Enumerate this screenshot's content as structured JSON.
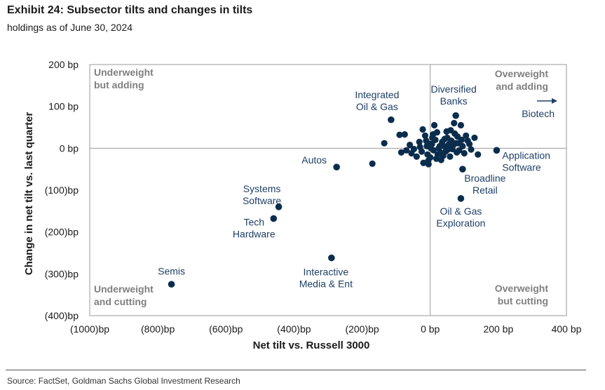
{
  "header": {
    "title": "Exhibit 24: Subsector tilts and changes in tilts",
    "subtitle": "holdings as of June 30, 2024"
  },
  "footer": {
    "source": "Source: FactSet, Goldman Sachs Global Investment Research"
  },
  "colors": {
    "marker": "#0b2d4d",
    "label": "#1f3f66",
    "quadrant_text": "#7f7f7f",
    "axis": "#999999"
  },
  "chart_data": {
    "type": "scatter",
    "title": "Exhibit 24: Subsector tilts and changes in tilts",
    "subtitle": "holdings as of June 30, 2024",
    "xlabel": "Net tilt vs. Russell 3000",
    "ylabel": "Change in net tilt vs. last quarter",
    "xlim": [
      -1000,
      400
    ],
    "ylim": [
      -400,
      200
    ],
    "x_ticks": [
      -1000,
      -800,
      -600,
      -400,
      -200,
      0,
      200,
      400
    ],
    "x_tick_labels": [
      "(1000)bp",
      "(800)bp",
      "(600)bp",
      "(400)bp",
      "(200)bp",
      "0 bp",
      "200 bp",
      "400 bp"
    ],
    "y_ticks": [
      200,
      100,
      0,
      -100,
      -200,
      -300,
      -400
    ],
    "y_tick_labels": [
      "200 bp",
      "100 bp",
      "0 bp",
      "(100)bp",
      "(200)bp",
      "(300)bp",
      "(400)bp"
    ],
    "grid": false,
    "quadrant_labels": [
      {
        "position": "top-left",
        "lines": [
          "Underweight",
          "but adding"
        ]
      },
      {
        "position": "top-right",
        "lines": [
          "Overweight",
          "and adding"
        ]
      },
      {
        "position": "bottom-left",
        "lines": [
          "Underweight",
          "and cutting"
        ]
      },
      {
        "position": "bottom-right",
        "lines": [
          "Overweight",
          "but cutting"
        ]
      }
    ],
    "labeled_points": [
      {
        "name": "Semis",
        "lines": [
          "Semis"
        ],
        "x": -760,
        "y": -325
      },
      {
        "name": "Tech Hardware",
        "lines": [
          "Tech",
          "Hardware"
        ],
        "x": -460,
        "y": -168
      },
      {
        "name": "Systems Software",
        "lines": [
          "Systems",
          "Software"
        ],
        "x": -445,
        "y": -140
      },
      {
        "name": "Interactive Media & Ent",
        "lines": [
          "Interactive",
          "Media & Ent"
        ],
        "x": -290,
        "y": -262
      },
      {
        "name": "Autos",
        "lines": [
          "Autos"
        ],
        "x": -275,
        "y": -45
      },
      {
        "name": "Integrated Oil & Gas",
        "lines": [
          "Integrated",
          "Oil & Gas"
        ],
        "x": -115,
        "y": 68
      },
      {
        "name": "Diversified Banks",
        "lines": [
          "Diversified",
          "Banks"
        ],
        "x": 75,
        "y": 78
      },
      {
        "name": "Application Software",
        "lines": [
          "Application",
          "Software"
        ],
        "x": 195,
        "y": -5
      },
      {
        "name": "Broadline Retail",
        "lines": [
          "Broadline",
          "Retail"
        ],
        "x": 95,
        "y": -50
      },
      {
        "name": "Oil & Gas Exploration",
        "lines": [
          "Oil & Gas",
          "Exploration"
        ],
        "x": 90,
        "y": -120
      }
    ],
    "offscale_point": {
      "name": "Biotech",
      "lines": [
        "Biotech"
      ],
      "direction": "right",
      "y": 113
    },
    "cluster_points": [
      [
        -170,
        -37
      ],
      [
        -135,
        12
      ],
      [
        -90,
        32
      ],
      [
        -75,
        33
      ],
      [
        -85,
        -10
      ],
      [
        -70,
        -5
      ],
      [
        -60,
        8
      ],
      [
        -55,
        -12
      ],
      [
        -40,
        -20
      ],
      [
        -30,
        3
      ],
      [
        -22,
        45
      ],
      [
        -15,
        30
      ],
      [
        -10,
        5
      ],
      [
        -5,
        -38
      ],
      [
        -20,
        -35
      ],
      [
        -8,
        -15
      ],
      [
        0,
        -22
      ],
      [
        5,
        10
      ],
      [
        10,
        -5
      ],
      [
        15,
        20
      ],
      [
        20,
        38
      ],
      [
        25,
        0
      ],
      [
        30,
        -10
      ],
      [
        35,
        15
      ],
      [
        40,
        5
      ],
      [
        45,
        -8
      ],
      [
        50,
        25
      ],
      [
        55,
        10
      ],
      [
        60,
        43
      ],
      [
        65,
        -2
      ],
      [
        70,
        60
      ],
      [
        75,
        12
      ],
      [
        80,
        28
      ],
      [
        85,
        -5
      ],
      [
        90,
        55
      ],
      [
        95,
        5
      ],
      [
        100,
        -12
      ],
      [
        105,
        30
      ],
      [
        110,
        18
      ],
      [
        115,
        10
      ],
      [
        120,
        -3
      ],
      [
        130,
        25
      ],
      [
        140,
        -15
      ],
      [
        -2,
        10
      ],
      [
        8,
        33
      ],
      [
        18,
        -25
      ],
      [
        28,
        5
      ],
      [
        38,
        -18
      ],
      [
        48,
        40
      ],
      [
        58,
        -20
      ],
      [
        68,
        8
      ],
      [
        78,
        -10
      ],
      [
        12,
        55
      ],
      [
        -12,
        18
      ],
      [
        22,
        -15
      ],
      [
        42,
        22
      ],
      [
        52,
        -3
      ],
      [
        62,
        18
      ],
      [
        72,
        35
      ],
      [
        82,
        12
      ],
      [
        92,
        20
      ],
      [
        -32,
        15
      ],
      [
        -48,
        -2
      ],
      [
        2,
        0
      ],
      [
        -6,
        -30
      ],
      [
        32,
        -28
      ],
      [
        -25,
        -8
      ],
      [
        6,
        25
      ]
    ]
  }
}
